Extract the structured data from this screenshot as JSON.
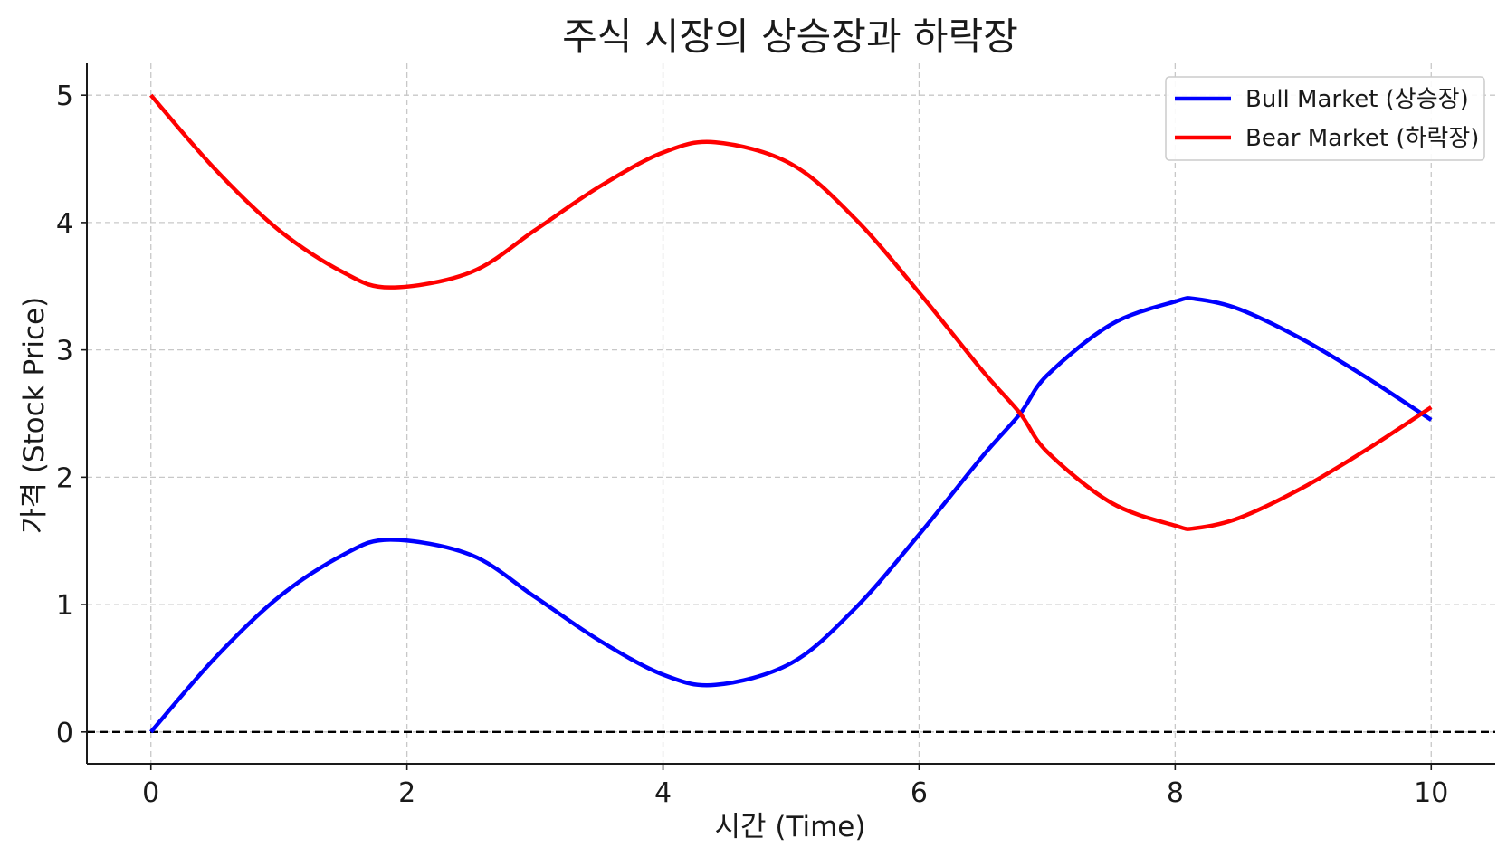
{
  "chart_data": {
    "type": "line",
    "title": "주식 시장의 상승장과 하락장",
    "xlabel": "시간 (Time)",
    "ylabel": "가격 (Stock Price)",
    "xlim": [
      -0.5,
      10.5
    ],
    "ylim": [
      -0.25,
      5.25
    ],
    "x_ticks": [
      0,
      2,
      4,
      6,
      8,
      10
    ],
    "y_ticks": [
      0,
      1,
      2,
      3,
      4,
      5
    ],
    "grid": true,
    "legend_position": "top-right",
    "reference_line": {
      "y": 0,
      "style": "dashed",
      "color": "#000000"
    },
    "x": [
      0,
      0.5,
      1,
      1.5,
      1.87,
      2.5,
      3,
      3.5,
      4,
      4.41,
      5,
      5.5,
      6,
      6.5,
      6.79,
      7,
      7.5,
      8,
      8.16,
      8.5,
      9,
      9.5,
      10
    ],
    "series": [
      {
        "name": "Bull Market (상승장)",
        "color": "#0000ff",
        "values": [
          0,
          0.58,
          1.06,
          1.39,
          1.51,
          1.39,
          1.06,
          0.72,
          0.45,
          0.37,
          0.54,
          0.97,
          1.55,
          2.17,
          2.5,
          2.8,
          3.2,
          3.38,
          3.4,
          3.32,
          3.08,
          2.78,
          2.45
        ]
      },
      {
        "name": "Bear Market (하락장)",
        "color": "#ff0000",
        "values": [
          5,
          4.42,
          3.94,
          3.61,
          3.49,
          3.61,
          3.94,
          4.28,
          4.55,
          4.63,
          4.46,
          4.03,
          3.45,
          2.83,
          2.5,
          2.2,
          1.8,
          1.62,
          1.6,
          1.68,
          1.92,
          2.22,
          2.55
        ]
      }
    ]
  }
}
